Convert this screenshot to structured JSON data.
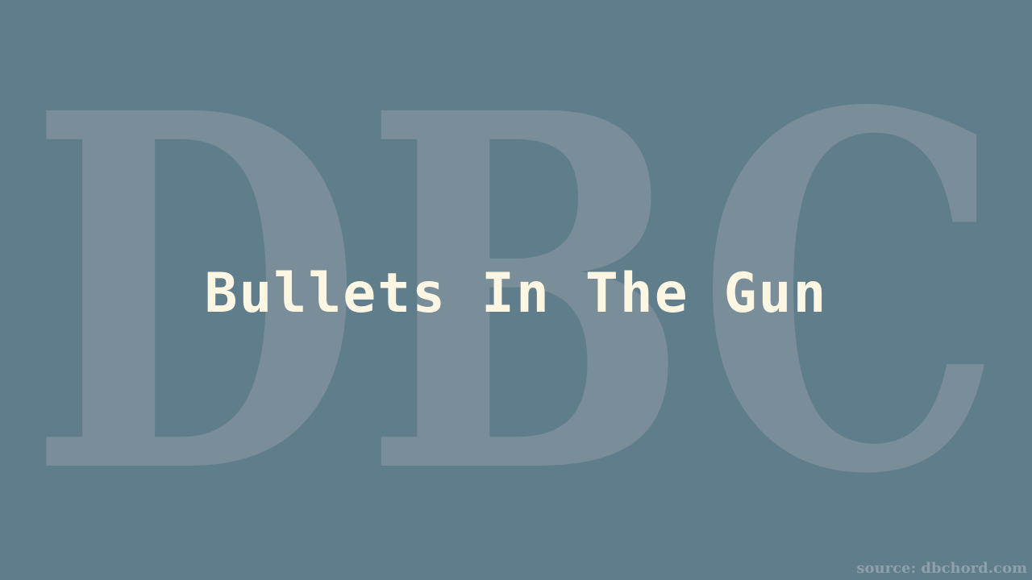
{
  "watermark": {
    "text": "DBC"
  },
  "title": "Bullets In The Gun",
  "source": "source: dbchord.com",
  "colors": {
    "background": "#607d8b",
    "watermark": "#7a8e9a",
    "title": "#fdf6e3",
    "source": "#8ea0ab"
  }
}
